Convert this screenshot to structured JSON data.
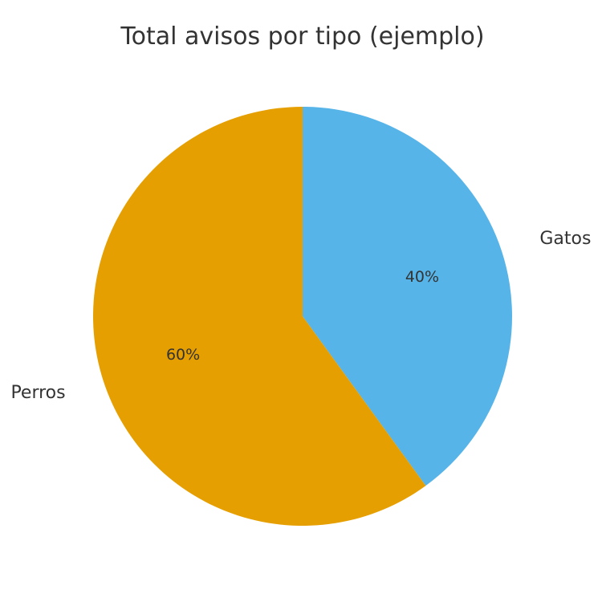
{
  "chart_data": {
    "type": "pie",
    "title": "Total avisos por tipo (ejemplo)",
    "categories": [
      "Gatos",
      "Perros"
    ],
    "values": [
      40,
      60
    ],
    "percent_labels": [
      "40%",
      "60%"
    ],
    "colors": [
      "#56B4E9",
      "#E69F00"
    ],
    "start_angle": "top",
    "direction": "clockwise"
  }
}
